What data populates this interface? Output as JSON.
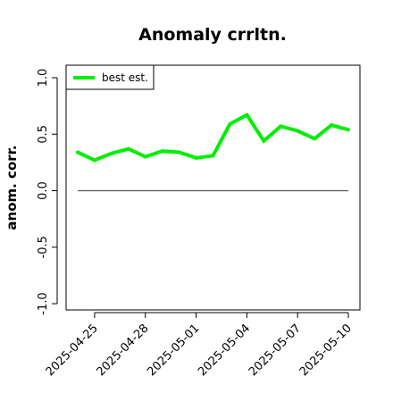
{
  "chart_data": {
    "type": "line",
    "title": "Anomaly crrltn.",
    "xlabel": "",
    "ylabel": "anom. corr.",
    "x": [
      "2025-04-24",
      "2025-04-25",
      "2025-04-26",
      "2025-04-27",
      "2025-04-28",
      "2025-04-29",
      "2025-04-30",
      "2025-05-01",
      "2025-05-02",
      "2025-05-03",
      "2025-05-04",
      "2025-05-05",
      "2025-05-06",
      "2025-05-07",
      "2025-05-08",
      "2025-05-09",
      "2025-05-10"
    ],
    "x_ticks": [
      "2025-04-25",
      "2025-04-28",
      "2025-05-01",
      "2025-05-04",
      "2025-05-07",
      "2025-05-10"
    ],
    "series": [
      {
        "name": "best est.",
        "color": "#00ee00",
        "values": [
          0.34,
          0.27,
          0.33,
          0.37,
          0.3,
          0.35,
          0.34,
          0.29,
          0.31,
          0.59,
          0.67,
          0.44,
          0.57,
          0.53,
          0.46,
          0.58,
          0.54
        ]
      }
    ],
    "reference_line": {
      "y": 0.0,
      "color": "#555555"
    },
    "ylim": [
      -1.0,
      1.0
    ],
    "y_ticks": [
      -1.0,
      -0.5,
      0.0,
      0.5,
      1.0
    ],
    "y_tick_labels": [
      "-1.0",
      "-0.5",
      "0.0",
      "0.5",
      "1.0"
    ],
    "grid": false,
    "legend_position": "top-left"
  }
}
